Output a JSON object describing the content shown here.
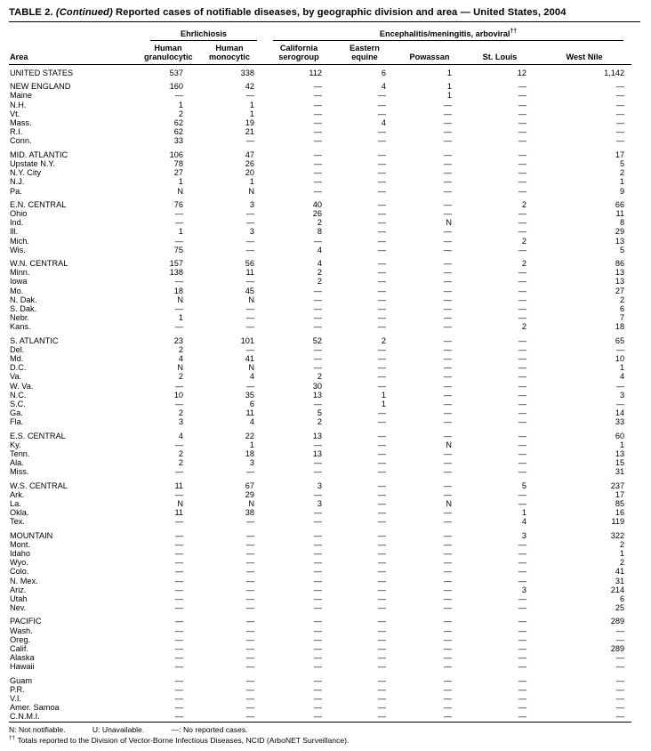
{
  "title": {
    "label": "TABLE 2.",
    "continued": "(Continued)",
    "text": "Reported cases of notifiable diseases, by geographic division and area — United States, 2004"
  },
  "table": {
    "area_header": "Area",
    "groups": [
      {
        "label": "Ehrlichiosis",
        "sup": ""
      },
      {
        "label": "Encephalitis/meningitis, arboviral",
        "sup": "††"
      }
    ],
    "columns": [
      "Human\ngranulocytic",
      "Human\nmonocytic",
      "California\nserogroup",
      "Eastern\nequine",
      "Powassan",
      "St. Louis",
      "West Nile"
    ],
    "sections": [
      [
        [
          "UNITED STATES",
          "537",
          "338",
          "112",
          "6",
          "1",
          "12",
          "1,142"
        ]
      ],
      [
        [
          "NEW ENGLAND",
          "160",
          "42",
          "—",
          "4",
          "1",
          "—",
          "—"
        ],
        [
          "Maine",
          "—",
          "—",
          "—",
          "—",
          "1",
          "—",
          "—"
        ],
        [
          "N.H.",
          "1",
          "1",
          "—",
          "—",
          "—",
          "—",
          "—"
        ],
        [
          "Vt.",
          "2",
          "1",
          "—",
          "—",
          "—",
          "—",
          "—"
        ],
        [
          "Mass.",
          "62",
          "19",
          "—",
          "4",
          "—",
          "—",
          "—"
        ],
        [
          "R.I.",
          "62",
          "21",
          "—",
          "—",
          "—",
          "—",
          "—"
        ],
        [
          "Conn.",
          "33",
          "—",
          "—",
          "—",
          "—",
          "—",
          "—"
        ]
      ],
      [
        [
          "MID. ATLANTIC",
          "106",
          "47",
          "—",
          "—",
          "—",
          "—",
          "17"
        ],
        [
          "Upstate N.Y.",
          "78",
          "26",
          "—",
          "—",
          "—",
          "—",
          "5"
        ],
        [
          "N.Y. City",
          "27",
          "20",
          "—",
          "—",
          "—",
          "—",
          "2"
        ],
        [
          "N.J.",
          "1",
          "1",
          "—",
          "—",
          "—",
          "—",
          "1"
        ],
        [
          "Pa.",
          "N",
          "N",
          "—",
          "—",
          "—",
          "—",
          "9"
        ]
      ],
      [
        [
          "E.N. CENTRAL",
          "76",
          "3",
          "40",
          "—",
          "—",
          "2",
          "66"
        ],
        [
          "Ohio",
          "—",
          "—",
          "26",
          "—",
          "—",
          "—",
          "11"
        ],
        [
          "Ind.",
          "—",
          "—",
          "2",
          "—",
          "N",
          "—",
          "8"
        ],
        [
          "Ill.",
          "1",
          "3",
          "8",
          "—",
          "—",
          "—",
          "29"
        ],
        [
          "Mich.",
          "—",
          "—",
          "—",
          "—",
          "—",
          "2",
          "13"
        ],
        [
          "Wis.",
          "75",
          "—",
          "4",
          "—",
          "—",
          "—",
          "5"
        ]
      ],
      [
        [
          "W.N. CENTRAL",
          "157",
          "56",
          "4",
          "—",
          "—",
          "2",
          "86"
        ],
        [
          "Minn.",
          "138",
          "11",
          "2",
          "—",
          "—",
          "—",
          "13"
        ],
        [
          "Iowa",
          "—",
          "—",
          "2",
          "—",
          "—",
          "—",
          "13"
        ],
        [
          "Mo.",
          "18",
          "45",
          "—",
          "—",
          "—",
          "—",
          "27"
        ],
        [
          "N. Dak.",
          "N",
          "N",
          "—",
          "—",
          "—",
          "—",
          "2"
        ],
        [
          "S. Dak.",
          "—",
          "—",
          "—",
          "—",
          "—",
          "—",
          "6"
        ],
        [
          "Nebr.",
          "1",
          "—",
          "—",
          "—",
          "—",
          "—",
          "7"
        ],
        [
          "Kans.",
          "—",
          "—",
          "—",
          "—",
          "—",
          "2",
          "18"
        ]
      ],
      [
        [
          "S. ATLANTIC",
          "23",
          "101",
          "52",
          "2",
          "—",
          "—",
          "65"
        ],
        [
          "Del.",
          "2",
          "—",
          "—",
          "—",
          "—",
          "—",
          "—"
        ],
        [
          "Md.",
          "4",
          "41",
          "—",
          "—",
          "—",
          "—",
          "10"
        ],
        [
          "D.C.",
          "N",
          "N",
          "—",
          "—",
          "—",
          "—",
          "1"
        ],
        [
          "Va.",
          "2",
          "4",
          "2",
          "—",
          "—",
          "—",
          "4"
        ],
        [
          "W. Va.",
          "—",
          "—",
          "30",
          "—",
          "—",
          "—",
          "—"
        ],
        [
          "N.C.",
          "10",
          "35",
          "13",
          "1",
          "—",
          "—",
          "3"
        ],
        [
          "S.C.",
          "—",
          "6",
          "—",
          "1",
          "—",
          "—",
          "—"
        ],
        [
          "Ga.",
          "2",
          "11",
          "5",
          "—",
          "—",
          "—",
          "14"
        ],
        [
          "Fla.",
          "3",
          "4",
          "2",
          "—",
          "—",
          "—",
          "33"
        ]
      ],
      [
        [
          "E.S. CENTRAL",
          "4",
          "22",
          "13",
          "—",
          "—",
          "—",
          "60"
        ],
        [
          "Ky.",
          "—",
          "1",
          "—",
          "—",
          "N",
          "—",
          "1"
        ],
        [
          "Tenn.",
          "2",
          "18",
          "13",
          "—",
          "—",
          "—",
          "13"
        ],
        [
          "Ala.",
          "2",
          "3",
          "—",
          "—",
          "—",
          "—",
          "15"
        ],
        [
          "Miss.",
          "—",
          "—",
          "—",
          "—",
          "—",
          "—",
          "31"
        ]
      ],
      [
        [
          "W.S. CENTRAL",
          "11",
          "67",
          "3",
          "—",
          "—",
          "5",
          "237"
        ],
        [
          "Ark.",
          "—",
          "29",
          "—",
          "—",
          "—",
          "—",
          "17"
        ],
        [
          "La.",
          "N",
          "N",
          "3",
          "—",
          "N",
          "—",
          "85"
        ],
        [
          "Okla.",
          "11",
          "38",
          "—",
          "—",
          "—",
          "1",
          "16"
        ],
        [
          "Tex.",
          "—",
          "—",
          "—",
          "—",
          "—",
          "4",
          "119"
        ]
      ],
      [
        [
          "MOUNTAIN",
          "—",
          "—",
          "—",
          "—",
          "—",
          "3",
          "322"
        ],
        [
          "Mont.",
          "—",
          "—",
          "—",
          "—",
          "—",
          "—",
          "2"
        ],
        [
          "Idaho",
          "—",
          "—",
          "—",
          "—",
          "—",
          "—",
          "1"
        ],
        [
          "Wyo.",
          "—",
          "—",
          "—",
          "—",
          "—",
          "—",
          "2"
        ],
        [
          "Colo.",
          "—",
          "—",
          "—",
          "—",
          "—",
          "—",
          "41"
        ],
        [
          "N. Mex.",
          "—",
          "—",
          "—",
          "—",
          "—",
          "—",
          "31"
        ],
        [
          "Ariz.",
          "—",
          "—",
          "—",
          "—",
          "—",
          "3",
          "214"
        ],
        [
          "Utah",
          "—",
          "—",
          "—",
          "—",
          "—",
          "—",
          "6"
        ],
        [
          "Nev.",
          "—",
          "—",
          "—",
          "—",
          "—",
          "—",
          "25"
        ]
      ],
      [
        [
          "PACIFIC",
          "—",
          "—",
          "—",
          "—",
          "—",
          "—",
          "289"
        ],
        [
          "Wash.",
          "—",
          "—",
          "—",
          "—",
          "—",
          "—",
          "—"
        ],
        [
          "Oreg.",
          "—",
          "—",
          "—",
          "—",
          "—",
          "—",
          "—"
        ],
        [
          "Calif.",
          "—",
          "—",
          "—",
          "—",
          "—",
          "—",
          "289"
        ],
        [
          "Alaska",
          "—",
          "—",
          "—",
          "—",
          "—",
          "—",
          "—"
        ],
        [
          "Hawaii",
          "—",
          "—",
          "—",
          "—",
          "—",
          "—",
          "—"
        ]
      ],
      [
        [
          "Guam",
          "—",
          "—",
          "—",
          "—",
          "—",
          "—",
          "—"
        ],
        [
          "P.R.",
          "—",
          "—",
          "—",
          "—",
          "—",
          "—",
          "—"
        ],
        [
          "V.I.",
          "—",
          "—",
          "—",
          "—",
          "—",
          "—",
          "—"
        ],
        [
          "Amer. Samoa",
          "—",
          "—",
          "—",
          "—",
          "—",
          "—",
          "—"
        ],
        [
          "C.N.M.I.",
          "—",
          "—",
          "—",
          "—",
          "—",
          "—",
          "—"
        ]
      ]
    ]
  },
  "footnotes": {
    "legend": [
      "N: Not notifiable.",
      "U: Unavailable.",
      "—: No reported cases."
    ],
    "note_sup": "††",
    "note_text": "Totals reported to the Division of Vector-Borne Infectious Diseases, NCID (ArboNET Surveillance)."
  }
}
